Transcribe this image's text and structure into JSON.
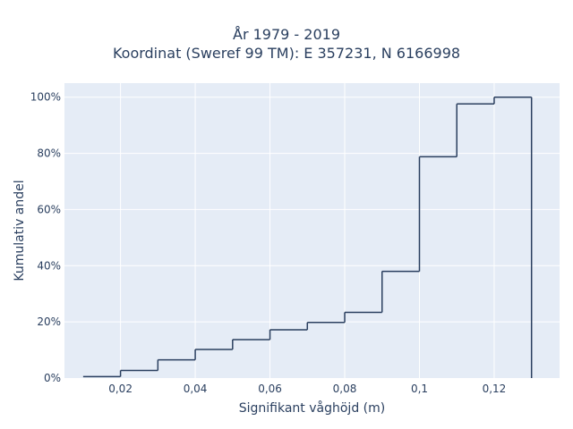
{
  "chart_data": {
    "type": "step",
    "title_line1": "År 1979 - 2019",
    "title_line2": "Koordinat (Sweref 99 TM): E 357231, N 6166998",
    "xlabel": "Signifikant våghöjd (m)",
    "ylabel": "Kumulativ andel",
    "xlim": [
      0.005,
      0.1375
    ],
    "ylim": [
      0,
      1.05
    ],
    "x_ticks": [
      0.02,
      0.04,
      0.06,
      0.08,
      0.1,
      0.12
    ],
    "x_tick_labels": [
      "0,02",
      "0,04",
      "0,06",
      "0,08",
      "0,1",
      "0,12"
    ],
    "y_ticks": [
      0,
      0.2,
      0.4,
      0.6,
      0.8,
      1.0
    ],
    "y_tick_labels": [
      "0%",
      "20%",
      "40%",
      "60%",
      "80%",
      "100%"
    ],
    "bin_edges": [
      0.01,
      0.02,
      0.03,
      0.04,
      0.05,
      0.06,
      0.07,
      0.08,
      0.09,
      0.1,
      0.11,
      0.12,
      0.13
    ],
    "cumulative": [
      0.005,
      0.027,
      0.065,
      0.102,
      0.137,
      0.172,
      0.198,
      0.234,
      0.38,
      0.788,
      0.976,
      1.0
    ],
    "grid": true,
    "legend": "none",
    "colors": {
      "line": "#2a3f5f",
      "plot_bg": "#e5ecf6",
      "grid": "#ffffff"
    }
  }
}
